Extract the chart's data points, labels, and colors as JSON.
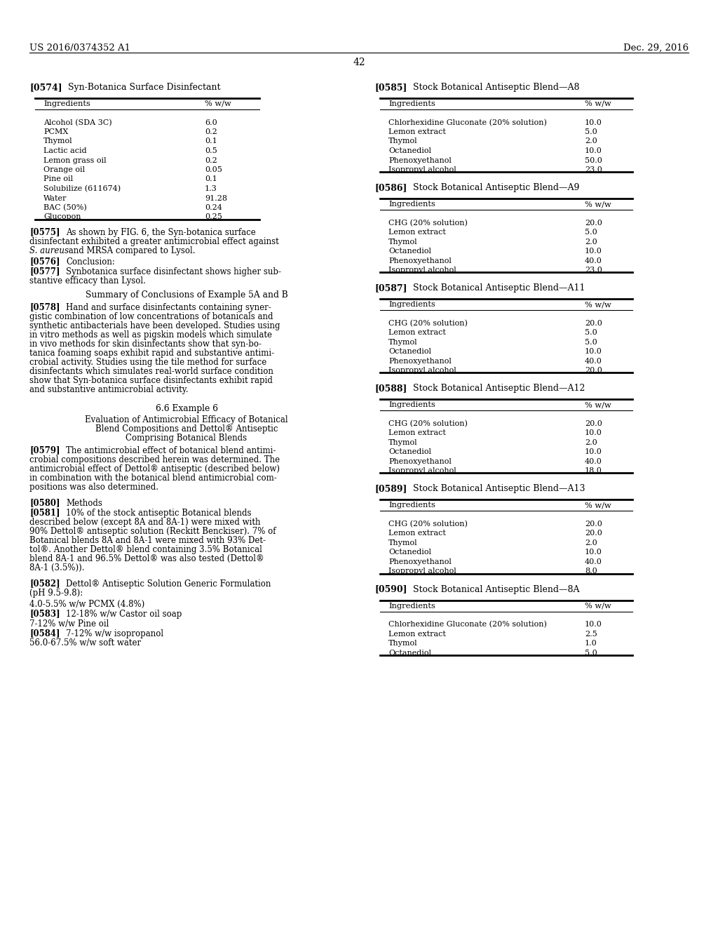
{
  "page_number": "42",
  "header_left": "US 2016/0374352 A1",
  "header_right": "Dec. 29, 2016",
  "background": "#ffffff",
  "section574_label": "[0574]",
  "section574_title": "Syn-Botanica Surface Disinfectant",
  "table574_headers": [
    "Ingredients",
    "% w/w"
  ],
  "table574_rows": [
    [
      "Alcohol (SDA 3C)",
      "6.0"
    ],
    [
      "PCMX",
      "0.2"
    ],
    [
      "Thymol",
      "0.1"
    ],
    [
      "Lactic acid",
      "0.5"
    ],
    [
      "Lemon grass oil",
      "0.2"
    ],
    [
      "Orange oil",
      "0.05"
    ],
    [
      "Pine oil",
      "0.1"
    ],
    [
      "Solubilize (611674)",
      "1.3"
    ],
    [
      "Water",
      "91.28"
    ],
    [
      "BAC (50%)",
      "0.24"
    ],
    [
      "Glucopon",
      "0.25"
    ]
  ],
  "section585_label": "[0585]",
  "section585_title": "Stock Botanical Antiseptic Blend—A8",
  "table585_headers": [
    "Ingredients",
    "% w/w"
  ],
  "table585_rows": [
    [
      "Chlorhexidine Gluconate (20% solution)",
      "10.0"
    ],
    [
      "Lemon extract",
      "5.0"
    ],
    [
      "Thymol",
      "2.0"
    ],
    [
      "Octanediol",
      "10.0"
    ],
    [
      "Phenoxyethanol",
      "50.0"
    ],
    [
      "Isopropyl alcohol",
      "23.0"
    ]
  ],
  "section586_label": "[0586]",
  "section586_title": "Stock Botanical Antiseptic Blend—A9",
  "table586_headers": [
    "Ingredients",
    "% w/w"
  ],
  "table586_rows": [
    [
      "CHG (20% solution)",
      "20.0"
    ],
    [
      "Lemon extract",
      "5.0"
    ],
    [
      "Thymol",
      "2.0"
    ],
    [
      "Octanediol",
      "10.0"
    ],
    [
      "Phenoxyethanol",
      "40.0"
    ],
    [
      "Isopropyl alcohol",
      "23.0"
    ]
  ],
  "section587_label": "[0587]",
  "section587_title": "Stock Botanical Antiseptic Blend—A11",
  "table587_headers": [
    "Ingredients",
    "% w/w"
  ],
  "table587_rows": [
    [
      "CHG (20% solution)",
      "20.0"
    ],
    [
      "Lemon extract",
      "5.0"
    ],
    [
      "Thymol",
      "5.0"
    ],
    [
      "Octanediol",
      "10.0"
    ],
    [
      "Phenoxyethanol",
      "40.0"
    ],
    [
      "Isopropyl alcohol",
      "20.0"
    ]
  ],
  "section588_label": "[0588]",
  "section588_title": "Stock Botanical Antiseptic Blend—A12",
  "table588_headers": [
    "Ingredients",
    "% w/w"
  ],
  "table588_rows": [
    [
      "CHG (20% solution)",
      "20.0"
    ],
    [
      "Lemon extract",
      "10.0"
    ],
    [
      "Thymol",
      "2.0"
    ],
    [
      "Octanediol",
      "10.0"
    ],
    [
      "Phenoxyethanol",
      "40.0"
    ],
    [
      "Isopropyl alcohol",
      "18.0"
    ]
  ],
  "section589_label": "[0589]",
  "section589_title": "Stock Botanical Antiseptic Blend—A13",
  "table589_headers": [
    "Ingredients",
    "% w/w"
  ],
  "table589_rows": [
    [
      "CHG (20% solution)",
      "20.0"
    ],
    [
      "Lemon extract",
      "20.0"
    ],
    [
      "Thymol",
      "2.0"
    ],
    [
      "Octanediol",
      "10.0"
    ],
    [
      "Phenoxyethanol",
      "40.0"
    ],
    [
      "Isopropyl alcohol",
      "8.0"
    ]
  ],
  "section590_label": "[0590]",
  "section590_title": "Stock Botanical Antiseptic Blend—8A",
  "table590_headers": [
    "Ingredients",
    "% w/w"
  ],
  "table590_rows": [
    [
      "Chlorhexidine Gluconate (20% solution)",
      "10.0"
    ],
    [
      "Lemon extract",
      "2.5"
    ],
    [
      "Thymol",
      "1.0"
    ],
    [
      "Octanediol",
      "5.0"
    ]
  ],
  "para575_bold": "[0575]",
  "para575_text": "  As shown by FIG. 6, the Syn-botanica surface\ndisinfectant exhibited a greater antimicrobial effect against\nS. aureus and MRSA compared to Lysol.",
  "para575_italic_range": [
    0,
    0
  ],
  "para576_bold": "[0576]",
  "para576_text": "   Conclusion:",
  "para577_bold": "[0577]",
  "para577_text": "   Synbotanica surface disinfectant shows higher sub-\nstantive efficacy than Lysol.",
  "summary_title": "Summary of Conclusions of Example 5A and B",
  "para578_bold": "[0578]",
  "para578_text": "   Hand and surface disinfectants containing syner-\ngistic combination of low concentrations of botanicals and\nsynthetic antibacterials have been developed. Studies using\nin vitro methods as well as pigskin models which simulate\nin vivo methods for skin disinfectants show that syn-bo-\ntanica foaming soaps exhibit rapid and substantive antimi-\ncrobial activity. Studies using the tile method for surface\ndisinfectants which simulates real-world surface condition\nshow that Syn-botanica surface disinfectants exhibit rapid\nand substantive antimicrobial activity.",
  "example6_title": "6.6 Example 6",
  "example6_sub1": "Evaluation of Antimicrobial Efficacy of Botanical",
  "example6_sub2": "Blend Compositions and Dettol® Antiseptic",
  "example6_sub3": "Comprising Botanical Blends",
  "para579_bold": "[0579]",
  "para579_text": "   The antimicrobial effect of botanical blend antimi-\ncrobial compositions described herein was determined. The\nantimicrobial effect of Dettol® antiseptic (described below)\nin combination with the botanical blend antimicrobial com-\npositions was also determined.",
  "para580_bold": "[0580]",
  "para580_text": "   Methods",
  "para581_bold": "[0581]",
  "para581_text": "   10% of the stock antiseptic Botanical blends\ndescribed below (except 8A and 8A-1) were mixed with\n90% Dettol® antiseptic solution (Reckitt Benckiser). 7% of\nBotanical blends 8A and 8A-1 were mixed with 93% Det-\ntol®. Another Dettol® blend containing 3.5% Botanical\nblend 8A-1 and 96.5% Dettol® was also tested (Dettol®\n8A-1 (3.5%)).",
  "para582_bold": "[0582]",
  "para582_text": "   Dettol® Antiseptic Solution Generic Formulation\n(pH 9.5-9.8):",
  "para582b": "4.0-5.5% w/w PCMX (4.8%)",
  "para583_bold": "[0583]",
  "para583_text": "   12-18% w/w Castor oil soap",
  "para583b": "7-12% w/w Pine oil",
  "para584_bold": "[0584]",
  "para584_text": "   7-12% w/w isopropanol\n56.0-67.5% w/w soft water"
}
